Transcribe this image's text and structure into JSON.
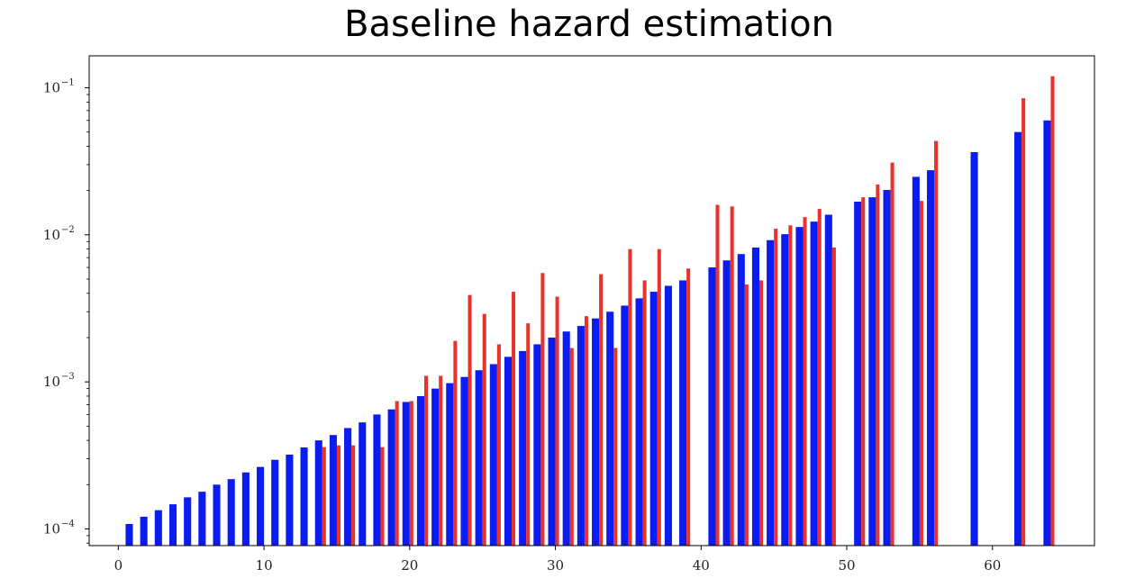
{
  "chart_data": {
    "type": "bar",
    "title": "Baseline hazard estimation",
    "xlabel": "",
    "ylabel": "",
    "xlim": [
      -2,
      67
    ],
    "ylim": [
      7.7e-05,
      0.165
    ],
    "yscale": "log",
    "xticks": [
      0,
      10,
      20,
      30,
      40,
      50,
      60
    ],
    "yticks": [
      {
        "value": 0.0001,
        "base": "10",
        "exp": "−4"
      },
      {
        "value": 0.001,
        "base": "10",
        "exp": "−3"
      },
      {
        "value": 0.01,
        "base": "10",
        "exp": "−2"
      },
      {
        "value": 0.1,
        "base": "10",
        "exp": "−1"
      }
    ],
    "grid": false,
    "series": [
      {
        "color": "#0a1cf0",
        "x": [
          1,
          2,
          3,
          4,
          5,
          6,
          7,
          8,
          9,
          10,
          11,
          12,
          13,
          14,
          15,
          16,
          17,
          18,
          19,
          20,
          21,
          22,
          23,
          24,
          25,
          26,
          27,
          28,
          29,
          30,
          31,
          32,
          33,
          34,
          35,
          36,
          37,
          38,
          39,
          41,
          42,
          43,
          44,
          45,
          46,
          47,
          48,
          49,
          51,
          52,
          53,
          55,
          56,
          59,
          62,
          64
        ],
        "values": [
          0.000108,
          0.000121,
          0.000134,
          0.000147,
          0.000164,
          0.000179,
          0.0002,
          0.000218,
          0.000242,
          0.000264,
          0.000295,
          0.00032,
          0.000358,
          0.0004,
          0.000435,
          0.000485,
          0.00053,
          0.0006,
          0.00065,
          0.00073,
          0.0008,
          0.0009,
          0.00098,
          0.00108,
          0.0012,
          0.00132,
          0.00148,
          0.00162,
          0.0018,
          0.002,
          0.0022,
          0.0024,
          0.0027,
          0.003,
          0.0033,
          0.0037,
          0.0041,
          0.0045,
          0.0049,
          0.006,
          0.0067,
          0.0074,
          0.0082,
          0.0092,
          0.0101,
          0.0113,
          0.0123,
          0.0137,
          0.0168,
          0.018,
          0.0202,
          0.0248,
          0.0275,
          0.0365,
          0.05,
          0.06
        ]
      },
      {
        "color": "#e8332a",
        "x": [
          14,
          15,
          16,
          18,
          19,
          20,
          21,
          22,
          23,
          24,
          25,
          26,
          27,
          28,
          29,
          30,
          31,
          32,
          33,
          34,
          35,
          36,
          37,
          39,
          41,
          42,
          43,
          44,
          45,
          46,
          47,
          48,
          49,
          51,
          52,
          53,
          55,
          56,
          62,
          64
        ],
        "values": [
          0.00036,
          0.00037,
          0.00037,
          0.00036,
          0.00074,
          0.00074,
          0.0011,
          0.0011,
          0.0019,
          0.0039,
          0.0029,
          0.0018,
          0.0041,
          0.0025,
          0.0055,
          0.0038,
          0.0017,
          0.0028,
          0.0054,
          0.0017,
          0.008,
          0.0049,
          0.008,
          0.0059,
          0.016,
          0.0156,
          0.0046,
          0.0049,
          0.011,
          0.0116,
          0.0132,
          0.015,
          0.0082,
          0.018,
          0.022,
          0.031,
          0.017,
          0.0435,
          0.085,
          0.12
        ]
      }
    ]
  }
}
